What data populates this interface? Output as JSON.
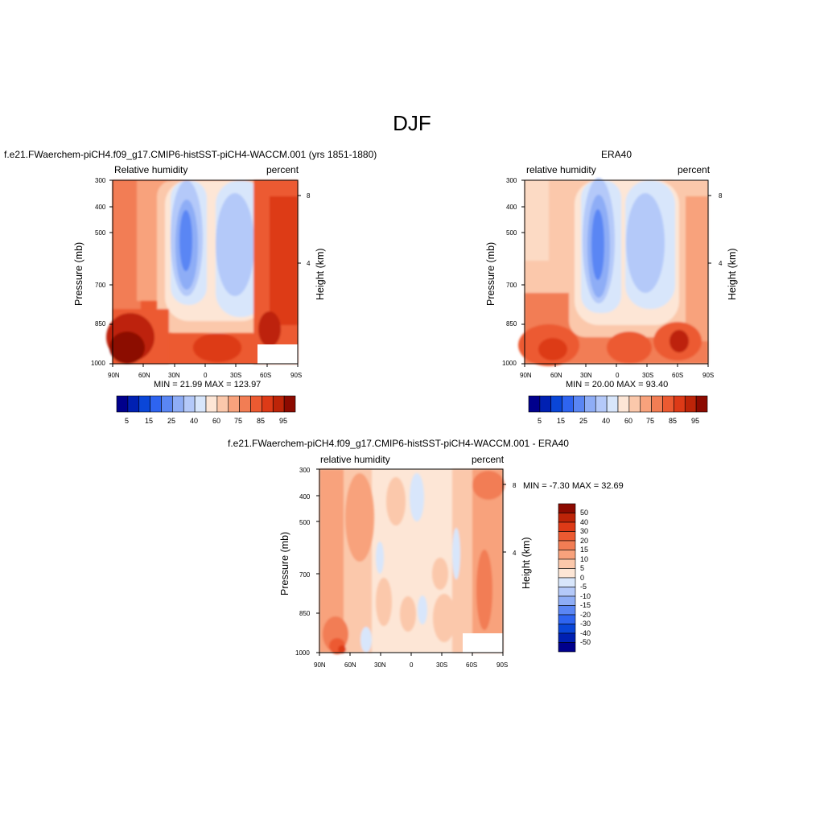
{
  "page": {
    "title": "DJF"
  },
  "colors": {
    "model_palette": [
      "#00008c",
      "#0020b2",
      "#0a46d8",
      "#2e64f0",
      "#5a86f4",
      "#8eadf6",
      "#b4c9f9",
      "#d8e6fb",
      "#fde6d6",
      "#fbc8ab",
      "#f8a27c",
      "#f27d54",
      "#ec5a31",
      "#dd3a17",
      "#bd2408",
      "#8c0a00"
    ],
    "diff_palette": [
      "#00008c",
      "#0020b2",
      "#0a46d8",
      "#2e64f0",
      "#5a86f4",
      "#8eadf6",
      "#b4c9f9",
      "#d8e6fb",
      "#fde6d6",
      "#fbc8ab",
      "#f8a27c",
      "#f27d54",
      "#ec5a31",
      "#dd3a17",
      "#bd2408",
      "#8c0a00"
    ]
  },
  "chart_data": [
    {
      "type": "heatmap",
      "title": "f.e21.FWaerchem-piCH4.f09_g17.CMIP6-histSST-piCH4-WACCM.001 (yrs 1851-1880)",
      "left_label": "Relative humidity",
      "right_label": "percent",
      "ylabel": "Pressure (mb)",
      "y2label": "Height (km)",
      "x_ticks": [
        "90N",
        "60N",
        "30N",
        "0",
        "30S",
        "60S",
        "90S"
      ],
      "x_range": [
        90,
        -90
      ],
      "y_ticks": [
        300,
        400,
        500,
        700,
        850,
        1000
      ],
      "y_range": [
        300,
        1000
      ],
      "y_scale": "log",
      "y2_ticks": [
        8,
        4
      ],
      "stats": "MIN =  21.99  MAX = 123.97",
      "colorbar": {
        "orientation": "horizontal",
        "labels": [
          "5",
          "15",
          "25",
          "40",
          "60",
          "75",
          "85",
          "95"
        ]
      }
    },
    {
      "type": "heatmap",
      "title": "ERA40",
      "left_label": "relative humidity",
      "right_label": "percent",
      "ylabel": "Pressure (mb)",
      "y2label": "Height (km)",
      "x_ticks": [
        "90N",
        "60N",
        "30N",
        "0",
        "30S",
        "60S",
        "90S"
      ],
      "x_range": [
        90,
        -90
      ],
      "y_ticks": [
        300,
        400,
        500,
        700,
        850,
        1000
      ],
      "y_range": [
        300,
        1000
      ],
      "y_scale": "log",
      "y2_ticks": [
        8,
        4
      ],
      "stats": "MIN =  20.00  MAX =  93.40",
      "colorbar": {
        "orientation": "horizontal",
        "labels": [
          "5",
          "15",
          "25",
          "40",
          "60",
          "75",
          "85",
          "95"
        ]
      }
    },
    {
      "type": "heatmap",
      "title": "f.e21.FWaerchem-piCH4.f09_g17.CMIP6-histSST-piCH4-WACCM.001 - ERA40",
      "left_label": "relative humidity",
      "right_label": "percent",
      "ylabel": "Pressure (mb)",
      "y2label": "Height (km)",
      "x_ticks": [
        "90N",
        "60N",
        "30N",
        "0",
        "30S",
        "60S",
        "90S"
      ],
      "x_range": [
        90,
        -90
      ],
      "y_ticks": [
        300,
        400,
        500,
        700,
        850,
        1000
      ],
      "y_range": [
        300,
        1000
      ],
      "y_scale": "log",
      "y2_ticks": [
        8,
        4
      ],
      "stats": "MIN =  -7.30  MAX =  32.69",
      "colorbar": {
        "orientation": "vertical",
        "labels": [
          "50",
          "40",
          "30",
          "20",
          "15",
          "10",
          "5",
          "0",
          "-5",
          "-10",
          "-15",
          "-20",
          "-30",
          "-40",
          "-50"
        ]
      }
    }
  ]
}
